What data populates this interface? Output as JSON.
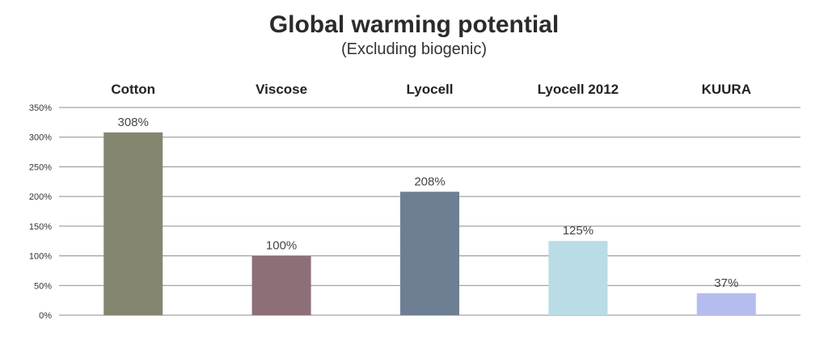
{
  "chart_data": {
    "type": "bar",
    "title": "Global warming potential",
    "subtitle": "(Excluding biogenic)",
    "categories": [
      "Cotton",
      "Viscose",
      "Lyocell",
      "Lyocell 2012",
      "KUURA"
    ],
    "values": [
      308,
      100,
      208,
      125,
      37
    ],
    "data_labels": [
      "308%",
      "100%",
      "208%",
      "125%",
      "37%"
    ],
    "colors": [
      "#85866f",
      "#8c6f77",
      "#6e7f93",
      "#b9dce6",
      "#b5bdee"
    ],
    "y_ticks": [
      0,
      50,
      100,
      150,
      200,
      250,
      300,
      350
    ],
    "y_tick_labels": [
      "0%",
      "50%",
      "100%",
      "150%",
      "200%",
      "250%",
      "300%",
      "350%"
    ],
    "ylim": [
      0,
      350
    ],
    "grid": true,
    "category_labels_position": "top"
  }
}
